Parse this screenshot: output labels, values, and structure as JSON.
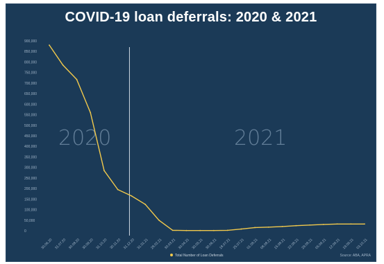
{
  "chart_data": {
    "type": "line",
    "title": "COVID-19 loan deferrals: 2020 & 2021",
    "xlabel": "",
    "ylabel": "",
    "ylim": [
      0,
      900000
    ],
    "yticks": [
      "0",
      "50,000",
      "100,000",
      "150,000",
      "200,000",
      "250,000",
      "300,000",
      "350,000",
      "400,000",
      "450,000",
      "500,000",
      "550,000",
      "600,000",
      "650,000",
      "700,000",
      "750,000",
      "800,000",
      "850,000",
      "900,000"
    ],
    "categories": [
      "30.06.20",
      "31.07.20",
      "30.08.20",
      "30.09.20",
      "31.10.20",
      "30.11.20",
      "31.12.20",
      "31.01.21",
      "28.02.21",
      "30.03.21",
      "30.04.21",
      "30.05.21",
      "30.06.21",
      "18.07.21",
      "25.07.21",
      "01.08.21",
      "08.08.21",
      "15.08.21",
      "22.08.21",
      "29.08.21",
      "05.09.21",
      "12.09.21",
      "19.09.21",
      "03.10.21"
    ],
    "series": [
      {
        "name": "Total Number of Loan Deferrals",
        "color": "#f2c94c",
        "values": [
          880000,
          785000,
          717000,
          560000,
          285000,
          195000,
          165000,
          125000,
          50000,
          2000,
          1000,
          1000,
          1000,
          2000,
          8000,
          15000,
          17000,
          20000,
          24000,
          27000,
          30000,
          32000,
          32000,
          32000
        ]
      }
    ],
    "annotations": [
      "2020",
      "2021"
    ],
    "divider_after_category": "31.12.20",
    "legend_position": "bottom-center",
    "grid": false,
    "source": "Source: ABA, APRA"
  }
}
